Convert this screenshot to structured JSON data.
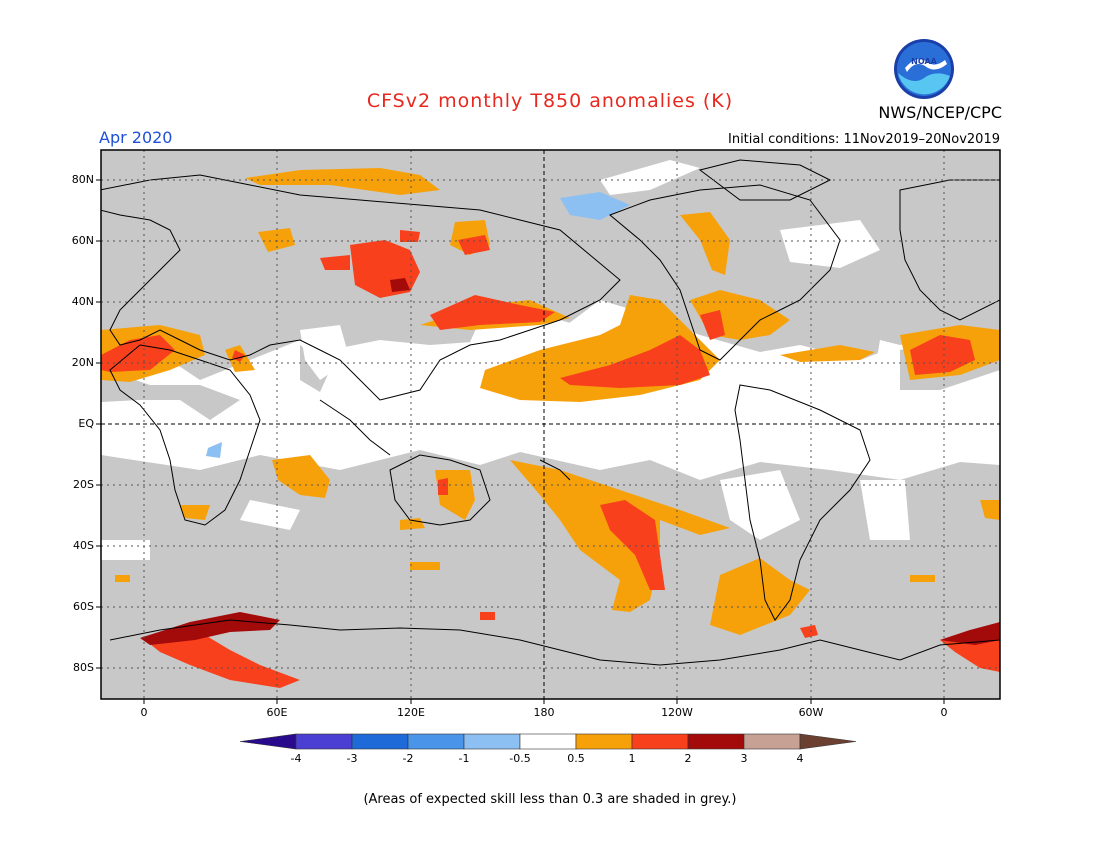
{
  "header": {
    "title": "CFSv2 monthly T850 anomalies (K)",
    "month": "Apr 2020",
    "initial_conditions": "Initial conditions: 11Nov2019–20Nov2019",
    "agency": "NWS/NCEP/CPC",
    "logo_text": "NOAA"
  },
  "map": {
    "lat_labels": [
      "80N",
      "60N",
      "40N",
      "20N",
      "EQ",
      "20S",
      "40S",
      "60S",
      "80S"
    ],
    "lon_labels": [
      "0",
      "60E",
      "120E",
      "180",
      "120W",
      "60W",
      "0"
    ],
    "lon_range": [
      -20,
      380
    ],
    "lat_range": [
      -90,
      90
    ],
    "reference_lines": [
      "equator",
      "dateline"
    ],
    "colors": {
      "low_skill_grey": "#c8c8c8",
      "neutral": "#ffffff",
      "land_outline": "#000000"
    }
  },
  "colorbar": {
    "labels": [
      "-4",
      "-3",
      "-2",
      "-1",
      "-0.5",
      "0.5",
      "1",
      "2",
      "3",
      "4"
    ],
    "colors": [
      "#2a0a8c",
      "#4b3ed2",
      "#1e6ad8",
      "#4a94ea",
      "#8cbff2",
      "#ffffff",
      "#f7a10a",
      "#f8401c",
      "#a30a0a",
      "#c8a195",
      "#6b4030"
    ]
  },
  "footnote": "(Areas of expected skill less than 0.3 are shaded in grey.)"
}
